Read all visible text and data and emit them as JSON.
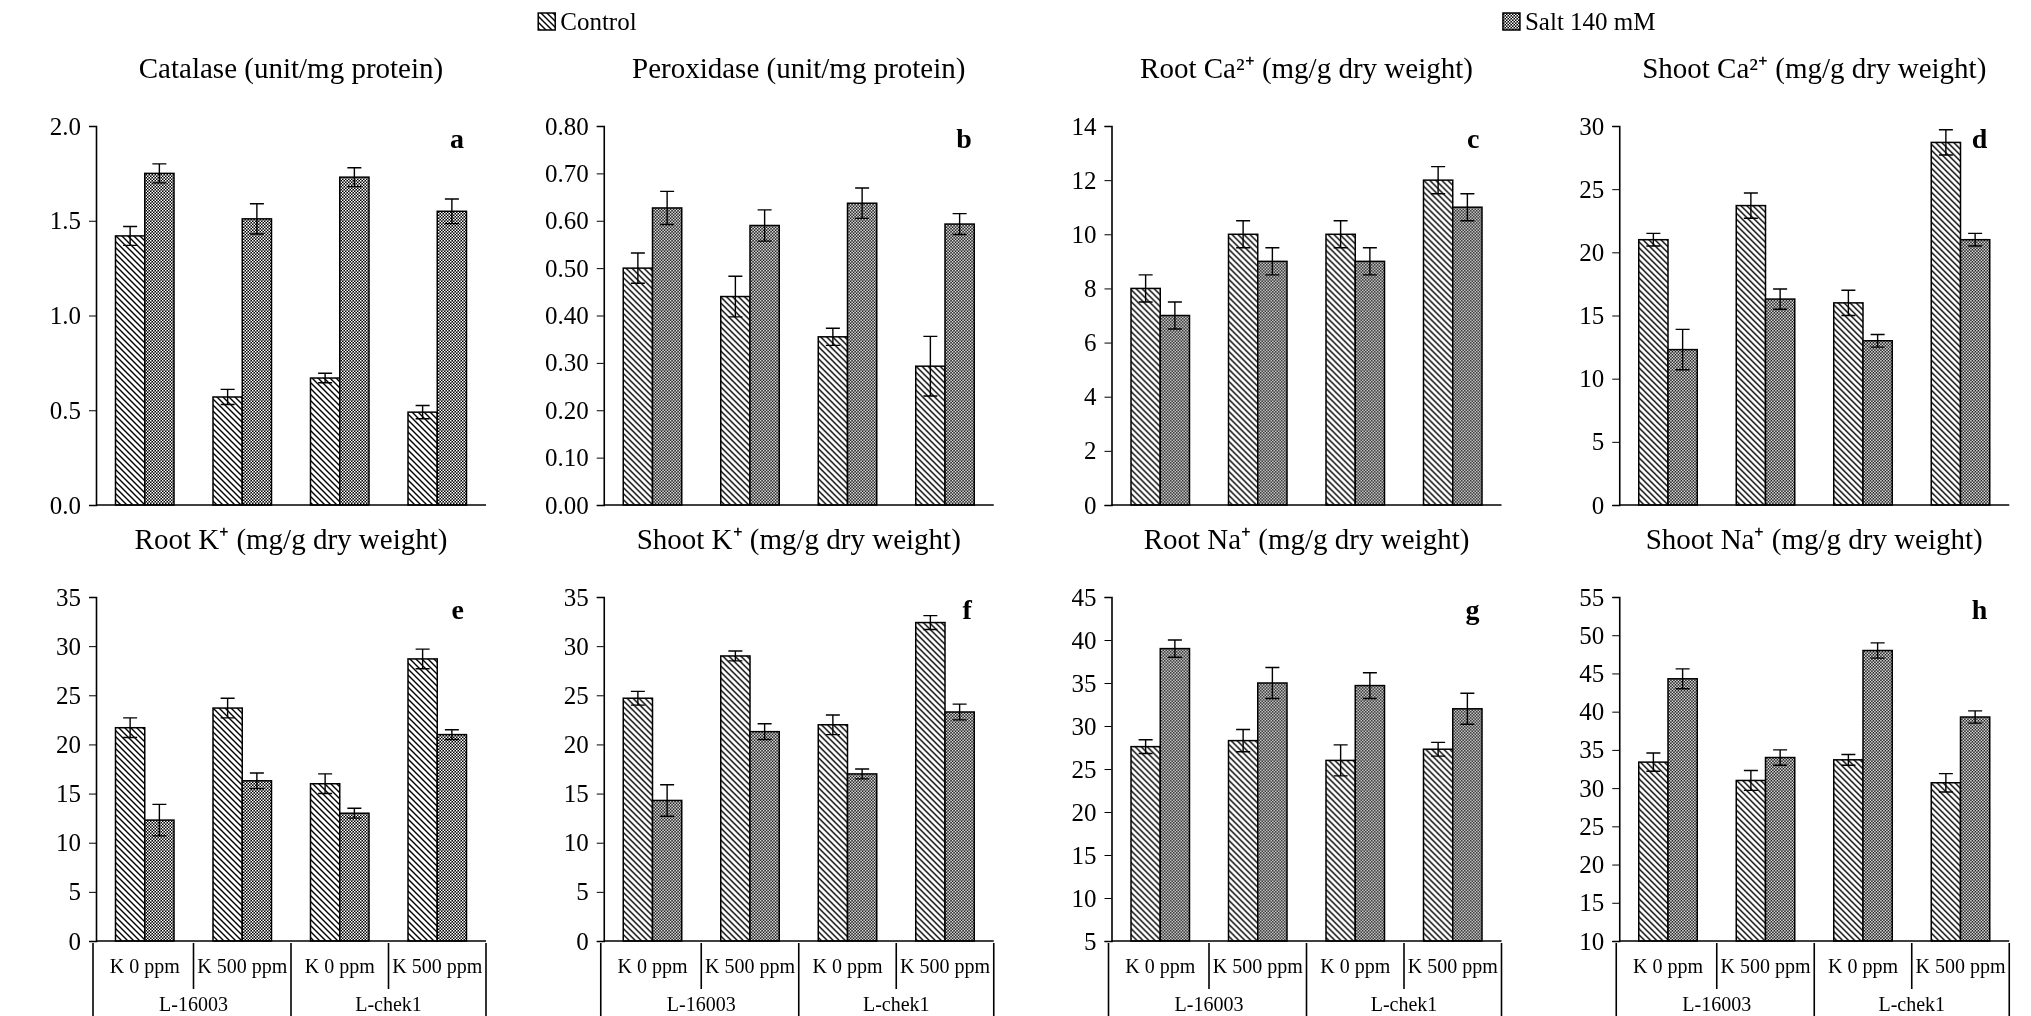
{
  "chart_data": [
    {
      "type": "bar",
      "title": "Catalase (unit/mg protein)",
      "categories": [
        null,
        null,
        null,
        null
      ],
      "tick_labels": "y",
      "legend": "top",
      "annotations": [
        "a"
      ],
      "ylim": [
        0,
        2
      ],
      "yticks": [
        {
          "value": 0,
          "label": "0.0"
        },
        {
          "value": 0.5,
          "label": "0.5"
        },
        {
          "value": 1,
          "label": "1.0"
        },
        {
          "value": 1.5,
          "label": "1.5"
        },
        {
          "value": 2,
          "label": "2.0"
        }
      ],
      "series": [
        {
          "name": "Control",
          "color": "#000000",
          "values": [
            1.42,
            0.57,
            0.67,
            0.49
          ],
          "errors": [
            0.05,
            0.04,
            0.025,
            0.035
          ]
        },
        {
          "name": "Salt 140 mM",
          "color": "#000000",
          "values": [
            1.75,
            1.51,
            1.73,
            1.55
          ],
          "errors": [
            0.05,
            0.08,
            0.05,
            0.065
          ]
        }
      ]
    },
    {
      "type": "bar",
      "title": "Peroxidase (unit/mg protein)",
      "categories": [
        null,
        null,
        null,
        null
      ],
      "tick_labels": "y",
      "annotations": [
        "b"
      ],
      "ylim": [
        0,
        0.8
      ],
      "yticks": [
        {
          "value": 0,
          "label": "0.00"
        },
        {
          "value": 0.1,
          "label": "0.10"
        },
        {
          "value": 0.2,
          "label": "0.20"
        },
        {
          "value": 0.3,
          "label": "0.30"
        },
        {
          "value": 0.4,
          "label": "0.40"
        },
        {
          "value": 0.5,
          "label": "0.50"
        },
        {
          "value": 0.6,
          "label": "0.60"
        },
        {
          "value": 0.7,
          "label": "0.70"
        },
        {
          "value": 0.8,
          "label": "0.80"
        }
      ],
      "series": [
        {
          "color": "#000000",
          "values": [
            0.5,
            0.44,
            0.355,
            0.293
          ],
          "errors": [
            0.032,
            0.043,
            0.018,
            0.063
          ]
        },
        {
          "color": "#000000",
          "values": [
            0.627,
            0.59,
            0.637,
            0.593
          ],
          "errors": [
            0.035,
            0.033,
            0.032,
            0.022
          ]
        }
      ]
    },
    {
      "type": "bar",
      "title": "Root Ca²⁺ (mg/g dry weight)",
      "categories": [
        null,
        null,
        null,
        null
      ],
      "tick_labels": "y",
      "annotations": [
        "c"
      ],
      "ylim": [
        0,
        14
      ],
      "yticks": [
        0,
        2,
        4,
        6,
        8,
        10,
        12,
        14
      ],
      "series": [
        {
          "color": "#000000",
          "values": [
            8,
            10,
            10,
            12
          ],
          "errors": [
            0.5,
            0.5,
            0.5,
            0.5
          ]
        },
        {
          "color": "#000000",
          "values": [
            7,
            9,
            9,
            11
          ],
          "errors": [
            0.5,
            0.5,
            0.5,
            0.5
          ]
        }
      ]
    },
    {
      "type": "bar",
      "title": "Shoot Ca²⁺ (mg/g dry weight)",
      "categories": [
        null,
        null,
        null,
        null
      ],
      "tick_labels": "y",
      "annotations": [
        "d"
      ],
      "ylim": [
        0,
        30
      ],
      "yticks": [
        0,
        5,
        10,
        15,
        20,
        25,
        30
      ],
      "series": [
        {
          "color": "#000000",
          "values": [
            21,
            23.7,
            16,
            28.7
          ],
          "errors": [
            0.5,
            1,
            1,
            1
          ]
        },
        {
          "color": "#000000",
          "values": [
            12.3,
            16.3,
            13,
            21
          ],
          "errors": [
            1.6,
            0.8,
            0.5,
            0.5
          ]
        }
      ]
    },
    {
      "type": "bar",
      "title": "Root K⁺ (mg/g dry weight)",
      "categories": [
        "K 0 ppm",
        "K 500 ppm",
        "K 0 ppm",
        "K 500 ppm"
      ],
      "annotations": [
        "e",
        "L-16003",
        "L-chek1"
      ],
      "ylim": [
        0,
        35
      ],
      "yticks": [
        0,
        5,
        10,
        15,
        20,
        25,
        30,
        35
      ],
      "series": [
        {
          "color": "#000000",
          "values": [
            21.7,
            23.7,
            16,
            28.7
          ],
          "errors": [
            1,
            1,
            1,
            1
          ]
        },
        {
          "color": "#000000",
          "values": [
            12.3,
            16.3,
            13,
            21
          ],
          "errors": [
            1.6,
            0.8,
            0.5,
            0.5
          ]
        }
      ]
    },
    {
      "type": "bar",
      "title": "Shoot K⁺ (mg/g dry weight)",
      "categories": [
        "K 0 ppm",
        "K 500 ppm",
        "K 0 ppm",
        "K 500 ppm"
      ],
      "annotations": [
        "f",
        "L-16003",
        "L-chek1"
      ],
      "ylim": [
        0,
        35
      ],
      "yticks": [
        0,
        5,
        10,
        15,
        20,
        25,
        30,
        35
      ],
      "series": [
        {
          "color": "#000000",
          "values": [
            24.7,
            29,
            22,
            32.4
          ],
          "errors": [
            0.7,
            0.5,
            1,
            0.7
          ]
        },
        {
          "color": "#000000",
          "values": [
            14.3,
            21.3,
            17,
            23.3
          ],
          "errors": [
            1.6,
            0.8,
            0.5,
            0.8
          ]
        }
      ]
    },
    {
      "type": "bar",
      "title": "Root Na⁺ (mg/g dry weight)",
      "categories": [
        "K 0 ppm",
        "K 500 ppm",
        "K 0 ppm",
        "K 500 ppm"
      ],
      "annotations": [
        "g",
        "L-16003",
        "L-chek1"
      ],
      "ylim": [
        5,
        45
      ],
      "yticks": [
        5,
        10,
        15,
        20,
        25,
        30,
        35,
        40,
        45
      ],
      "series": [
        {
          "color": "#000000",
          "values": [
            27.6,
            28.3,
            26,
            27.3
          ],
          "errors": [
            0.8,
            1.3,
            1.8,
            0.8
          ]
        },
        {
          "color": "#000000",
          "values": [
            39,
            35,
            34.7,
            32
          ],
          "errors": [
            1,
            1.8,
            1.5,
            1.8
          ]
        }
      ]
    },
    {
      "type": "bar",
      "title": "Shoot Na⁺ (mg/g dry weight)",
      "categories": [
        "K 0 ppm",
        "K 500 ppm",
        "K 0 ppm",
        "K 500 ppm"
      ],
      "annotations": [
        "h",
        "L-16003",
        "L-chek1"
      ],
      "ylim": [
        10,
        55
      ],
      "yticks": [
        10,
        15,
        20,
        25,
        30,
        35,
        40,
        45,
        50,
        55
      ],
      "series": [
        {
          "color": "#000000",
          "values": [
            33.4,
            31,
            33.7,
            30.7
          ],
          "errors": [
            1.2,
            1.3,
            0.7,
            1.2
          ]
        },
        {
          "color": "#000000",
          "values": [
            44.3,
            34,
            48,
            39.3
          ],
          "errors": [
            1.3,
            1,
            1,
            0.8
          ]
        }
      ]
    }
  ]
}
